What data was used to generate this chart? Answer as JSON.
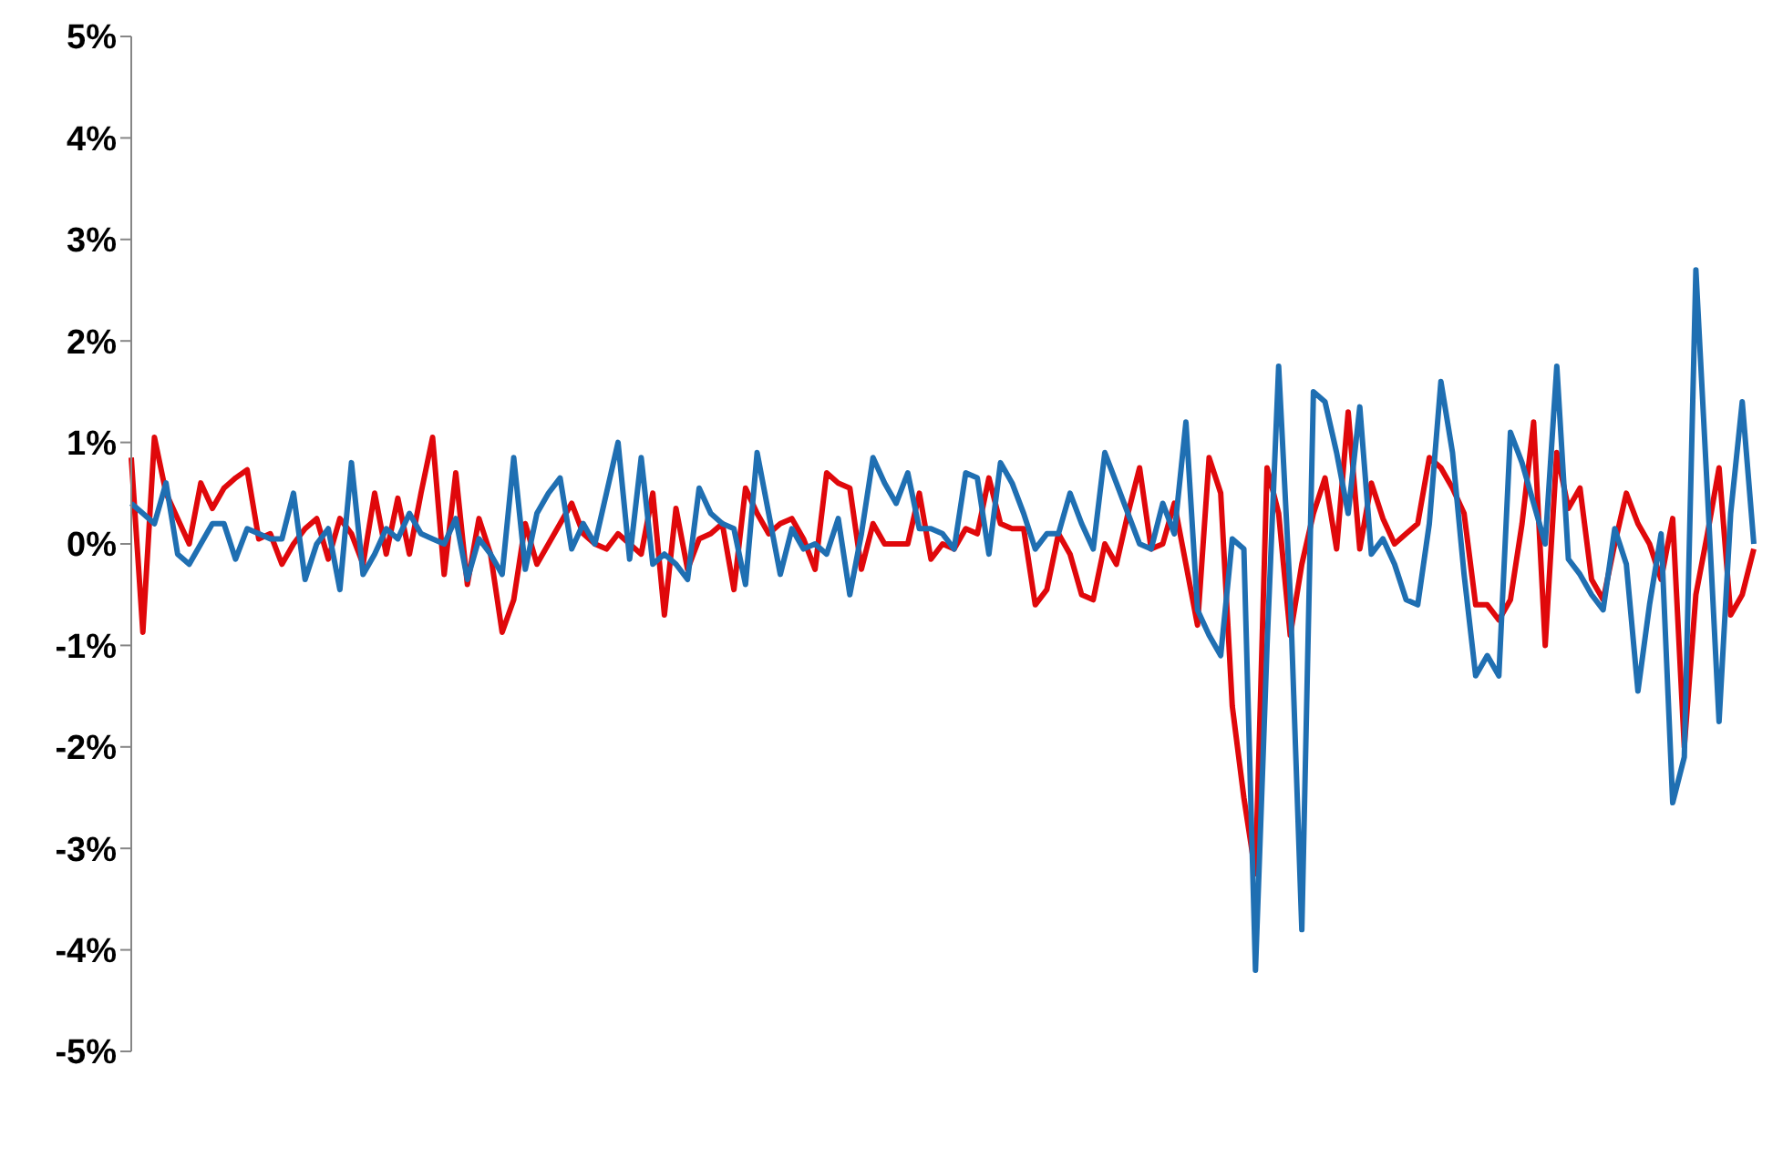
{
  "chart_data": {
    "type": "line",
    "categories": [
      null,
      null,
      null,
      null,
      null,
      null,
      null,
      null,
      null,
      null,
      null,
      null,
      null,
      null,
      null,
      null,
      null,
      null,
      null,
      null,
      null,
      null,
      null,
      null,
      null,
      null,
      null,
      null,
      null,
      null,
      null,
      null,
      null,
      null,
      null,
      null,
      null,
      null,
      null,
      null,
      null,
      null,
      null,
      null,
      null,
      null,
      null,
      null,
      null,
      null,
      null,
      null,
      null,
      null,
      null,
      null,
      null,
      null,
      null,
      null,
      null,
      null,
      null,
      null,
      null,
      null,
      null,
      null,
      null,
      null,
      null,
      null,
      null,
      null,
      null,
      null,
      null,
      null,
      null,
      null,
      null,
      null,
      null,
      null,
      null,
      null,
      null,
      null,
      null,
      null,
      null,
      null,
      null,
      null,
      null,
      null,
      null,
      null,
      null,
      null,
      null,
      null,
      null,
      null,
      null,
      null,
      null,
      null,
      null,
      null,
      null,
      null,
      null,
      null,
      null,
      null,
      null,
      null,
      null,
      null,
      null,
      null,
      null,
      null,
      null,
      null,
      null,
      null,
      null,
      null,
      null,
      null,
      null,
      null,
      null,
      null,
      null,
      null,
      null,
      null,
      null
    ],
    "series": [
      {
        "color": "#e0080b",
        "values": [
          0.85,
          -0.87,
          1.05,
          0.5,
          0.25,
          0,
          0.6,
          0.35,
          0.55,
          0.65,
          0.73,
          0.05,
          0.1,
          -0.2,
          0,
          0.15,
          0.25,
          -0.15,
          0.25,
          0.1,
          -0.2,
          0.5,
          -0.1,
          0.45,
          -0.1,
          0.5,
          1.05,
          -0.3,
          0.7,
          -0.4,
          0.25,
          -0.1,
          -0.87,
          -0.55,
          0.2,
          -0.2,
          0,
          0.2,
          0.4,
          0.1,
          0,
          -0.05,
          0.1,
          0,
          -0.1,
          0.5,
          -0.7,
          0.35,
          -0.25,
          0.05,
          0.1,
          0.2,
          -0.45,
          0.55,
          0.3,
          0.1,
          0.2,
          0.25,
          0.05,
          -0.25,
          0.7,
          0.6,
          0.55,
          -0.25,
          0.2,
          0,
          0,
          0,
          0.5,
          -0.15,
          0,
          -0.05,
          0.15,
          0.1,
          0.65,
          0.2,
          0.15,
          0.15,
          -0.6,
          -0.45,
          0.1,
          -0.1,
          -0.5,
          -0.55,
          0,
          -0.2,
          0.3,
          0.75,
          -0.05,
          0,
          0.4,
          -0.2,
          -0.8,
          0.85,
          0.5,
          -1.6,
          -2.5,
          -3.25,
          0.75,
          0.3,
          -0.9,
          -0.2,
          0.3,
          0.65,
          -0.05,
          1.3,
          -0.05,
          0.6,
          0.25,
          0,
          0.1,
          0.2,
          0.85,
          0.75,
          0.55,
          0.3,
          -0.6,
          -0.6,
          -0.75,
          -0.55,
          0.2,
          1.2,
          -1.0,
          0.9,
          0.35,
          0.55,
          -0.35,
          -0.55,
          0,
          0.5,
          0.2,
          0,
          -0.35,
          0.25,
          -2.0,
          -0.5,
          0.1,
          0.75,
          -0.7,
          -0.5,
          -0.05
        ]
      },
      {
        "color": "#1f6fb2",
        "values": [
          0.4,
          0.3,
          0.2,
          0.6,
          -0.1,
          -0.2,
          0,
          0.2,
          0.2,
          -0.15,
          0.15,
          0.1,
          0.05,
          0.05,
          0.5,
          -0.35,
          0,
          0.15,
          -0.45,
          0.8,
          -0.3,
          -0.1,
          0.15,
          0.05,
          0.3,
          0.1,
          0.05,
          0,
          0.25,
          -0.35,
          0.05,
          -0.1,
          -0.3,
          0.85,
          -0.25,
          0.3,
          0.5,
          0.65,
          -0.05,
          0.2,
          0,
          0.5,
          1.0,
          -0.15,
          0.85,
          -0.2,
          -0.1,
          -0.2,
          -0.35,
          0.55,
          0.3,
          0.2,
          0.15,
          -0.4,
          0.9,
          0.3,
          -0.3,
          0.15,
          -0.05,
          0,
          -0.1,
          0.25,
          -0.5,
          0.1,
          0.85,
          0.6,
          0.4,
          0.7,
          0.15,
          0.15,
          0.1,
          -0.05,
          0.7,
          0.65,
          -0.1,
          0.8,
          0.6,
          0.3,
          -0.05,
          0.1,
          0.1,
          0.5,
          0.2,
          -0.05,
          0.9,
          0.6,
          0.3,
          0,
          -0.05,
          0.4,
          0.1,
          1.2,
          -0.65,
          -0.9,
          -1.1,
          0.05,
          -0.05,
          -4.2,
          -1.0,
          1.75,
          -0.5,
          -3.8,
          1.5,
          1.4,
          0.9,
          0.3,
          1.35,
          -0.1,
          0.05,
          -0.2,
          -0.55,
          -0.6,
          0.2,
          1.6,
          0.9,
          -0.3,
          -1.3,
          -1.1,
          -1.3,
          1.1,
          0.8,
          0.4,
          0,
          1.75,
          -0.15,
          -0.3,
          -0.5,
          -0.65,
          0.15,
          -0.2,
          -1.45,
          -0.6,
          0.1,
          -2.55,
          -2.1,
          2.7,
          0.5,
          -1.75,
          0.3,
          1.4,
          0
        ]
      }
    ],
    "ylim": [
      -5,
      5
    ],
    "yticks": [
      {
        "value": -5,
        "label": "-5%"
      },
      {
        "value": -4,
        "label": "-4%"
      },
      {
        "value": -3,
        "label": "-3%"
      },
      {
        "value": -2,
        "label": "-2%"
      },
      {
        "value": -1,
        "label": "-1%"
      },
      {
        "value": 0,
        "label": "0%"
      },
      {
        "value": 1,
        "label": "1%"
      },
      {
        "value": 2,
        "label": "2%"
      },
      {
        "value": 3,
        "label": "3%"
      },
      {
        "value": 4,
        "label": "4%"
      },
      {
        "value": 5,
        "label": "5%"
      }
    ],
    "marker": "none",
    "line_style": "solid"
  }
}
